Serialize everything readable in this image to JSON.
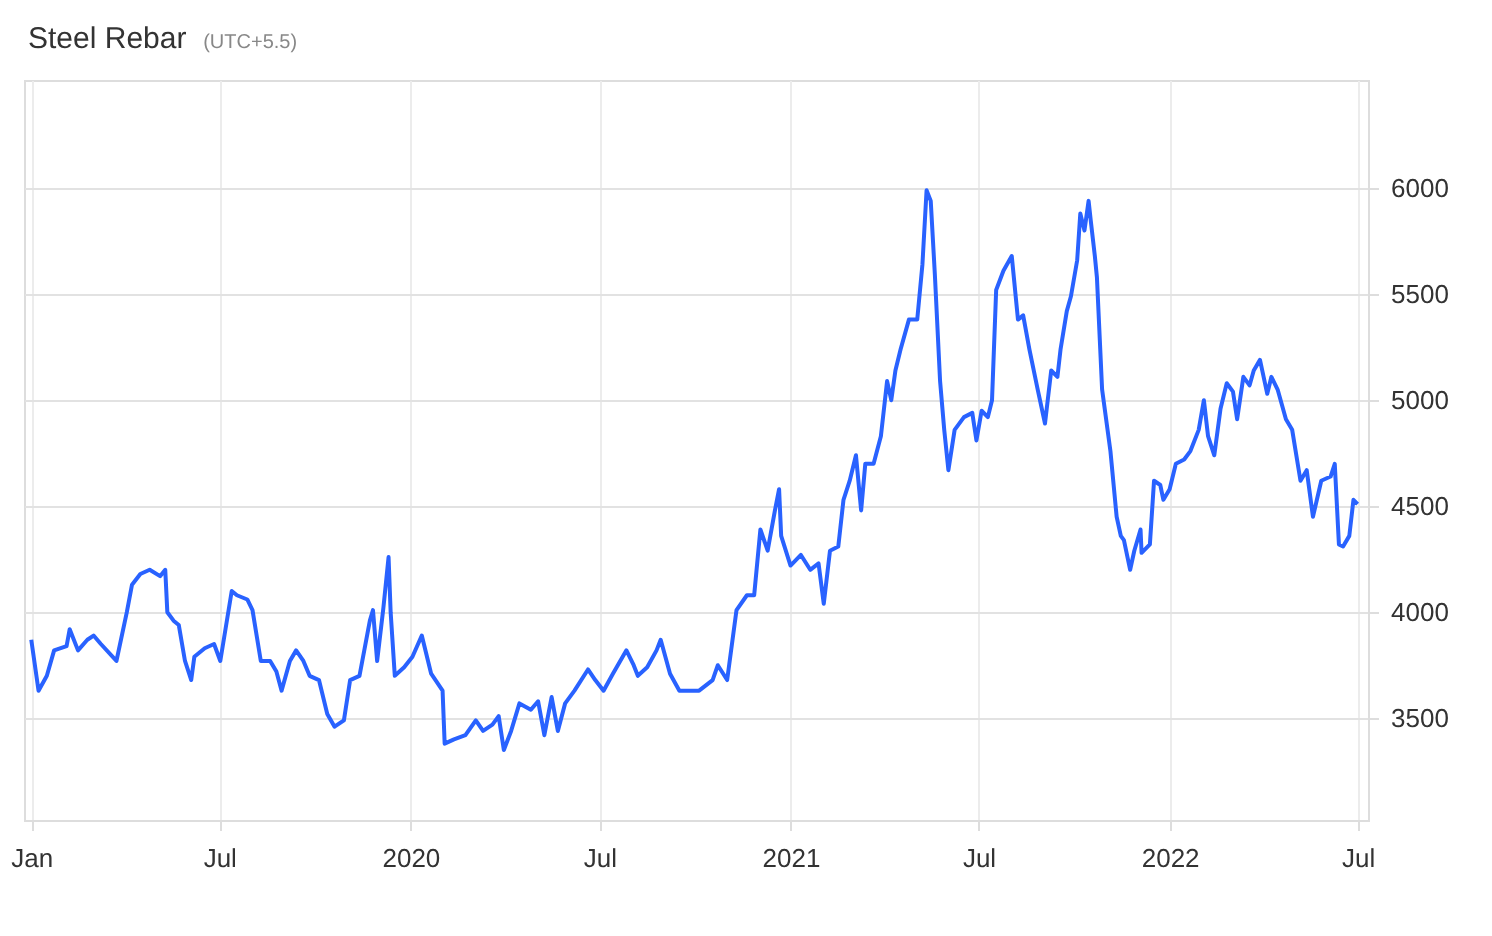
{
  "chart_data": {
    "type": "line",
    "title": "Steel Rebar",
    "subtitle": "(UTC+5.5)",
    "xlim": [
      "2018-12-25",
      "2022-07-11"
    ],
    "ylim": [
      3020,
      6510
    ],
    "xticks": [
      {
        "value": "2019-01-01",
        "label": "Jan"
      },
      {
        "value": "2019-07-01",
        "label": "Jul"
      },
      {
        "value": "2020-01-01",
        "label": "2020"
      },
      {
        "value": "2020-07-01",
        "label": "Jul"
      },
      {
        "value": "2021-01-01",
        "label": "2021"
      },
      {
        "value": "2021-07-01",
        "label": "Jul"
      },
      {
        "value": "2022-01-01",
        "label": "2022"
      },
      {
        "value": "2022-07-01",
        "label": "Jul"
      }
    ],
    "yticks": [
      3500,
      4000,
      4500,
      5000,
      5500,
      6000
    ],
    "grid": true,
    "marker": "none",
    "line_style": "solid",
    "series": [
      {
        "color": "#2962ff",
        "x": [
          "2019-01-01",
          "2019-01-08",
          "2019-01-16",
          "2019-01-23",
          "2019-02-04",
          "2019-02-07",
          "2019-02-15",
          "2019-02-24",
          "2019-03-02",
          "2019-03-09",
          "2019-03-24",
          "2019-04-03",
          "2019-04-08",
          "2019-04-16",
          "2019-04-25",
          "2019-05-05",
          "2019-05-10",
          "2019-05-12",
          "2019-05-18",
          "2019-05-23",
          "2019-05-29",
          "2019-06-04",
          "2019-06-07",
          "2019-06-17",
          "2019-06-26",
          "2019-07-02",
          "2019-07-13",
          "2019-07-18",
          "2019-07-28",
          "2019-08-02",
          "2019-08-10",
          "2019-08-19",
          "2019-08-25",
          "2019-08-30",
          "2019-09-07",
          "2019-09-13",
          "2019-09-20",
          "2019-09-26",
          "2019-10-05",
          "2019-10-13",
          "2019-10-20",
          "2019-10-29",
          "2019-11-04",
          "2019-11-13",
          "2019-11-23",
          "2019-11-26",
          "2019-11-30",
          "2019-12-06",
          "2019-12-11",
          "2019-12-13",
          "2019-12-17",
          "2019-12-26",
          "2020-01-03",
          "2020-01-12",
          "2020-01-14",
          "2020-01-21",
          "2020-02-01",
          "2020-02-03",
          "2020-02-12",
          "2020-02-23",
          "2020-03-04",
          "2020-03-11",
          "2020-03-20",
          "2020-03-26",
          "2020-03-31",
          "2020-04-07",
          "2020-04-15",
          "2020-04-26",
          "2020-05-03",
          "2020-05-09",
          "2020-05-16",
          "2020-05-22",
          "2020-05-29",
          "2020-06-07",
          "2020-06-20",
          "2020-06-27",
          "2020-07-05",
          "2020-07-14",
          "2020-07-27",
          "2020-08-03",
          "2020-08-07",
          "2020-08-16",
          "2020-08-25",
          "2020-08-29",
          "2020-09-07",
          "2020-09-16",
          "2020-10-05",
          "2020-10-18",
          "2020-10-23",
          "2020-11-01",
          "2020-11-10",
          "2020-11-20",
          "2020-11-27",
          "2020-12-03",
          "2020-12-10",
          "2020-12-17",
          "2020-12-21",
          "2020-12-23",
          "2021-01-01",
          "2021-01-11",
          "2021-01-20",
          "2021-01-28",
          "2021-02-02",
          "2021-02-08",
          "2021-02-16",
          "2021-02-21",
          "2021-02-27",
          "2021-03-05",
          "2021-03-10",
          "2021-03-14",
          "2021-03-22",
          "2021-03-29",
          "2021-04-04",
          "2021-04-08",
          "2021-04-12",
          "2021-04-17",
          "2021-04-25",
          "2021-05-03",
          "2021-05-08",
          "2021-05-12",
          "2021-05-16",
          "2021-05-20",
          "2021-05-25",
          "2021-05-29",
          "2021-06-02",
          "2021-06-08",
          "2021-06-17",
          "2021-06-25",
          "2021-06-29",
          "2021-07-04",
          "2021-07-10",
          "2021-07-14",
          "2021-07-18",
          "2021-07-25",
          "2021-08-02",
          "2021-08-08",
          "2021-08-13",
          "2021-08-19",
          "2021-08-27",
          "2021-09-03",
          "2021-09-09",
          "2021-09-15",
          "2021-09-18",
          "2021-09-24",
          "2021-09-28",
          "2021-10-04",
          "2021-10-07",
          "2021-10-11",
          "2021-10-15",
          "2021-10-17",
          "2021-10-21",
          "2021-10-23",
          "2021-10-28",
          "2021-11-05",
          "2021-11-11",
          "2021-11-15",
          "2021-11-18",
          "2021-11-24",
          "2021-11-28",
          "2021-12-04",
          "2021-12-05",
          "2021-12-13",
          "2021-12-17",
          "2021-12-23",
          "2021-12-26",
          "2022-01-01",
          "2022-01-07",
          "2022-01-15",
          "2022-01-21",
          "2022-01-29",
          "2022-02-03",
          "2022-02-07",
          "2022-02-13",
          "2022-02-19",
          "2022-02-25",
          "2022-03-03",
          "2022-03-07",
          "2022-03-13",
          "2022-03-19",
          "2022-03-23",
          "2022-03-29",
          "2022-04-05",
          "2022-04-09",
          "2022-04-15",
          "2022-04-23",
          "2022-04-29",
          "2022-05-07",
          "2022-05-13",
          "2022-05-19",
          "2022-05-27",
          "2022-06-05",
          "2022-06-09",
          "2022-06-13",
          "2022-06-17",
          "2022-06-23",
          "2022-06-27",
          "2022-07-01"
        ],
        "values": [
          3870,
          3630,
          3700,
          3820,
          3840,
          3920,
          3820,
          3870,
          3890,
          3850,
          3770,
          4000,
          4130,
          4180,
          4200,
          4170,
          4200,
          4000,
          3960,
          3940,
          3770,
          3680,
          3790,
          3830,
          3850,
          3770,
          4100,
          4080,
          4060,
          4010,
          3770,
          3770,
          3720,
          3630,
          3770,
          3820,
          3770,
          3700,
          3680,
          3520,
          3460,
          3490,
          3680,
          3700,
          3960,
          4010,
          3770,
          4020,
          4260,
          4000,
          3700,
          3740,
          3790,
          3890,
          3850,
          3710,
          3630,
          3380,
          3400,
          3420,
          3490,
          3440,
          3470,
          3510,
          3350,
          3440,
          3570,
          3540,
          3580,
          3420,
          3600,
          3440,
          3570,
          3630,
          3730,
          3680,
          3630,
          3710,
          3820,
          3750,
          3700,
          3740,
          3820,
          3870,
          3710,
          3630,
          3630,
          3680,
          3750,
          3680,
          4010,
          4080,
          4080,
          4390,
          4290,
          4480,
          4580,
          4360,
          4220,
          4270,
          4200,
          4230,
          4040,
          4290,
          4310,
          4530,
          4620,
          4740,
          4480,
          4700,
          4700,
          4830,
          5090,
          5000,
          5140,
          5240,
          5380,
          5380,
          5640,
          5990,
          5940,
          5590,
          5090,
          4860,
          4670,
          4860,
          4920,
          4940,
          4810,
          4950,
          4920,
          5000,
          5520,
          5610,
          5680,
          5380,
          5400,
          5240,
          5050,
          4890,
          5140,
          5110,
          5240,
          5420,
          5490,
          5660,
          5880,
          5800,
          5940,
          5850,
          5680,
          5580,
          5050,
          4760,
          4450,
          4360,
          4340,
          4200,
          4290,
          4390,
          4280,
          4320,
          4620,
          4600,
          4530,
          4580,
          4700,
          4720,
          4760,
          4860,
          5000,
          4830,
          4740,
          4960,
          5080,
          5040,
          4910,
          5110,
          5070,
          5140,
          5190,
          5030,
          5110,
          5050,
          4910,
          4860,
          4620,
          4670,
          4450,
          4620,
          4640,
          4700,
          4320,
          4310,
          4360,
          4530,
          4510
        ]
      }
    ]
  }
}
